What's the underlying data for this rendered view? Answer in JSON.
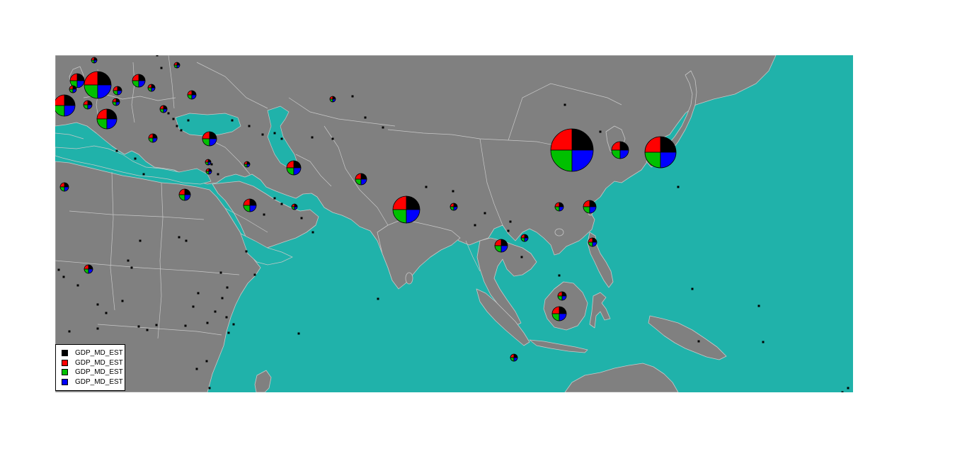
{
  "map": {
    "background_color": "#20b2aa",
    "land_color": "#808080",
    "border_color": "#c8c8c8"
  },
  "pie_series": [
    {
      "color": "#000000"
    },
    {
      "color": "#ff0000"
    },
    {
      "color": "#00c000"
    },
    {
      "color": "#0000ff"
    }
  ],
  "legend": {
    "items": [
      {
        "label": "GDP_MD_EST",
        "color": "#000000"
      },
      {
        "label": "GDP_MD_EST",
        "color": "#ff0000"
      },
      {
        "label": "GDP_MD_EST",
        "color": "#00c000"
      },
      {
        "label": "GDP_MD_EST",
        "color": "#0000ff"
      }
    ]
  }
}
